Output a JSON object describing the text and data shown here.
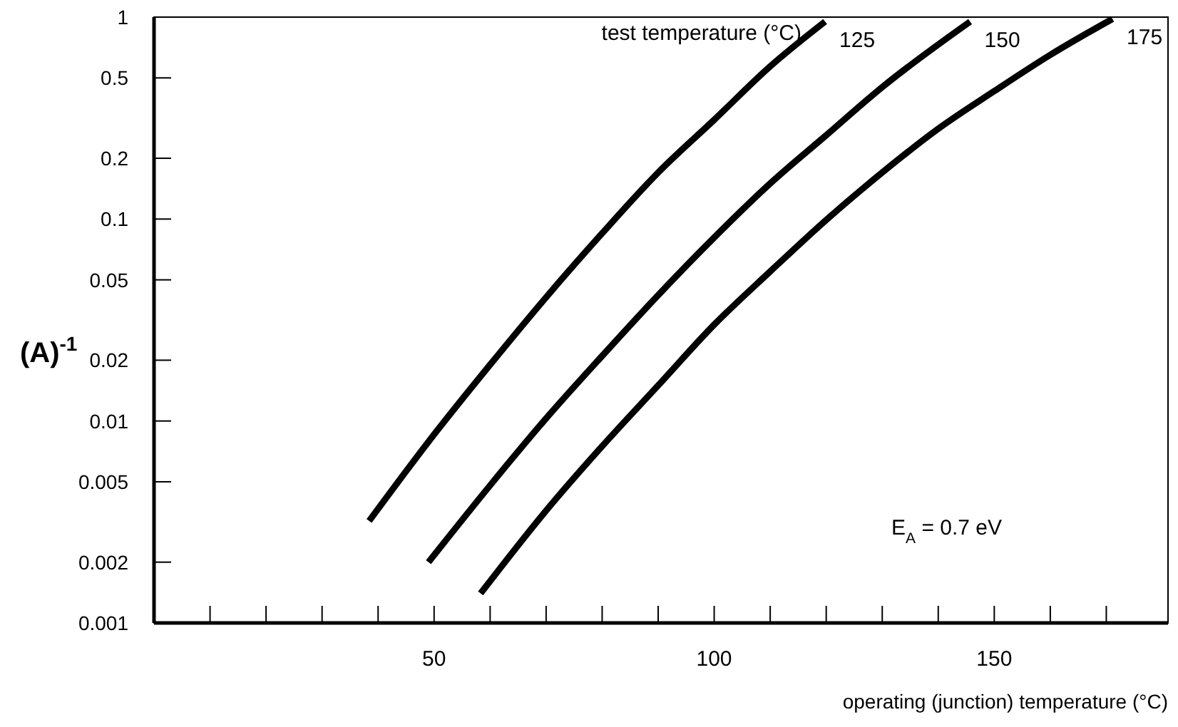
{
  "chart_data": {
    "type": "line",
    "xlabel": "operating (junction) temperature (°C)",
    "ylabel": "(A)$^{-1}$",
    "annotations": [
      "test temperature (°C)",
      "E$_{A}$ = 0.7 eV"
    ],
    "log": "y",
    "grid": false,
    "marker": "none",
    "line_style": "solid",
    "xlim": [
      0,
      180
    ],
    "xticks": [
      {
        "value": 10,
        "label": null
      },
      {
        "value": 20,
        "label": null
      },
      {
        "value": 30,
        "label": null
      },
      {
        "value": 40,
        "label": null
      },
      50,
      {
        "value": 60,
        "label": null
      },
      {
        "value": 70,
        "label": null
      },
      {
        "value": 80,
        "label": null
      },
      {
        "value": 90,
        "label": null
      },
      100,
      {
        "value": 110,
        "label": null
      },
      {
        "value": 120,
        "label": null
      },
      {
        "value": 130,
        "label": null
      },
      {
        "value": 140,
        "label": null
      },
      150,
      {
        "value": 160,
        "label": null
      },
      {
        "value": 170,
        "label": null
      }
    ],
    "ylim": [
      0.001,
      1
    ],
    "yticks": [
      0.001,
      0.002,
      0.005,
      0.01,
      0.02,
      0.05,
      0.1,
      0.2,
      0.5,
      1
    ],
    "series": [
      {
        "name": "125",
        "color": "#000000",
        "x": [
          38.4,
          49,
          60,
          70,
          80,
          90,
          100,
          110,
          119.8
        ],
        "values": [
          0.0032,
          0.0079,
          0.019,
          0.041,
          0.085,
          0.17,
          0.31,
          0.57,
          0.95
        ]
      },
      {
        "name": "150",
        "color": "#000000",
        "x": [
          49,
          60,
          70,
          80,
          90,
          100,
          110,
          120,
          130,
          145.7
        ],
        "values": [
          0.002,
          0.0048,
          0.0103,
          0.021,
          0.042,
          0.081,
          0.15,
          0.26,
          0.45,
          0.95
        ]
      },
      {
        "name": "175",
        "color": "#000000",
        "x": [
          58.3,
          70,
          80,
          90,
          100,
          110,
          120,
          130,
          140,
          150,
          160,
          171.1
        ],
        "values": [
          0.0014,
          0.0036,
          0.0075,
          0.015,
          0.03,
          0.055,
          0.099,
          0.17,
          0.28,
          0.43,
          0.65,
          0.98
        ]
      }
    ]
  }
}
